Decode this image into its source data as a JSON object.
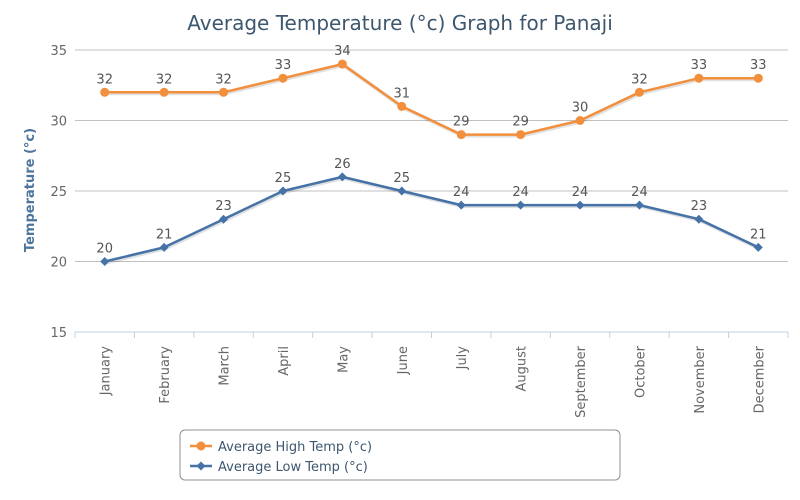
{
  "chart_data": {
    "type": "line",
    "title": "Average Temperature (°c) Graph for Panaji",
    "xlabel": "",
    "ylabel": "Temperature (°c)",
    "ylim": [
      15,
      35
    ],
    "yticks": [
      15,
      20,
      25,
      30,
      35
    ],
    "grid": true,
    "legend_position": "bottom-left",
    "categories": [
      "January",
      "February",
      "March",
      "April",
      "May",
      "June",
      "July",
      "August",
      "September",
      "October",
      "November",
      "December"
    ],
    "series": [
      {
        "name": "Average High Temp (°c)",
        "color": "#f28f3c",
        "marker": "circle",
        "values": [
          32,
          32,
          32,
          33,
          34,
          31,
          29,
          29,
          30,
          32,
          33,
          33
        ]
      },
      {
        "name": "Average Low Temp (°c)",
        "color": "#4572a7",
        "marker": "diamond",
        "values": [
          20,
          21,
          23,
          25,
          26,
          25,
          24,
          24,
          24,
          24,
          23,
          21
        ]
      }
    ]
  }
}
